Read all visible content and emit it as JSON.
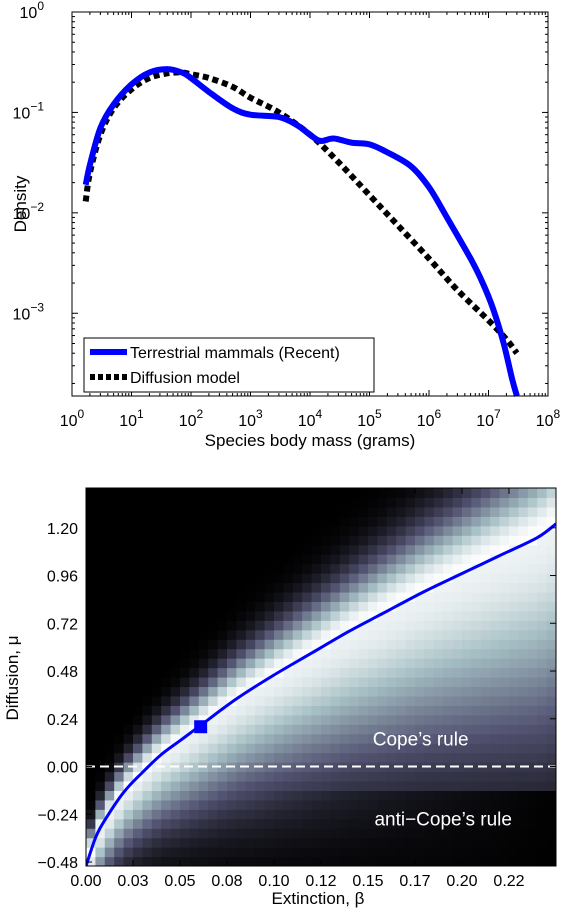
{
  "chart_data": [
    {
      "type": "line",
      "xlabel": "Species body mass (grams)",
      "ylabel": "Density",
      "xscale": "log",
      "yscale": "log",
      "xlim": [
        1,
        100000000
      ],
      "ylim": [
        0.00015,
        1
      ],
      "x_ticks": [
        {
          "value": 1,
          "base": "10",
          "exp": "0"
        },
        {
          "value": 10,
          "base": "10",
          "exp": "1"
        },
        {
          "value": 100,
          "base": "10",
          "exp": "2"
        },
        {
          "value": 1000,
          "base": "10",
          "exp": "3"
        },
        {
          "value": 10000,
          "base": "10",
          "exp": "4"
        },
        {
          "value": 100000,
          "base": "10",
          "exp": "5"
        },
        {
          "value": 1000000,
          "base": "10",
          "exp": "6"
        },
        {
          "value": 10000000,
          "base": "10",
          "exp": "7"
        },
        {
          "value": 100000000,
          "base": "10",
          "exp": "8"
        }
      ],
      "y_ticks": [
        {
          "value": 0.001,
          "base": "10",
          "exp": "−3"
        },
        {
          "value": 0.01,
          "base": "10",
          "exp": "−2"
        },
        {
          "value": 0.1,
          "base": "10",
          "exp": "−1"
        },
        {
          "value": 1,
          "base": "10",
          "exp": "0"
        }
      ],
      "legend_position": "bottom-left",
      "series": [
        {
          "name": "Terrestrial mammals (Recent)",
          "color": "#0000ff",
          "style": "solid",
          "x": [
            1.7,
            2,
            3,
            5,
            10,
            20,
            40,
            70,
            100,
            200,
            500,
            1000,
            3000,
            6000,
            10000,
            15000,
            25000,
            50000,
            100000,
            200000,
            500000,
            1000000,
            2000000,
            5000000,
            8000000,
            12000000,
            18000000,
            25000000,
            30000000
          ],
          "y": [
            0.019,
            0.03,
            0.07,
            0.12,
            0.19,
            0.25,
            0.27,
            0.25,
            0.22,
            0.16,
            0.11,
            0.095,
            0.09,
            0.075,
            0.06,
            0.052,
            0.055,
            0.05,
            0.048,
            0.04,
            0.029,
            0.018,
            0.009,
            0.0035,
            0.002,
            0.0011,
            0.0005,
            0.00022,
            0.00015
          ]
        },
        {
          "name": "Diffusion model",
          "color": "#000000",
          "style": "dotted",
          "x": [
            1.7,
            2,
            3,
            5,
            10,
            20,
            40,
            70,
            100,
            200,
            500,
            1000,
            3000,
            10000,
            30000,
            100000,
            300000,
            1000000,
            3000000,
            10000000,
            20000000,
            30000000
          ],
          "y": [
            0.013,
            0.025,
            0.06,
            0.11,
            0.17,
            0.22,
            0.245,
            0.25,
            0.24,
            0.22,
            0.18,
            0.14,
            0.1,
            0.06,
            0.032,
            0.015,
            0.0075,
            0.0035,
            0.0017,
            0.00085,
            0.00055,
            0.0004
          ]
        }
      ]
    },
    {
      "type": "heatmap",
      "xlabel": "Extinction, β",
      "ylabel": "Diffusion, μ",
      "xlim": [
        0,
        0.25
      ],
      "ylim": [
        -0.5,
        1.4
      ],
      "x_ticks": [
        "0.00",
        "0.03",
        "0.05",
        "0.08",
        "0.10",
        "0.12",
        "0.15",
        "0.17",
        "0.20",
        "0.22"
      ],
      "x_tick_values": [
        0,
        0.025,
        0.05,
        0.075,
        0.1,
        0.125,
        0.15,
        0.175,
        0.2,
        0.225
      ],
      "y_ticks": [
        "1.20",
        "0.96",
        "0.72",
        "0.48",
        "0.24",
        "0.00",
        "−0.24",
        "−0.48"
      ],
      "y_tick_values": [
        1.2,
        0.96,
        0.72,
        0.48,
        0.24,
        0,
        -0.24,
        -0.48
      ],
      "colormap": "bone",
      "curve": {
        "color": "#0000ff",
        "beta": [
          0,
          0.005,
          0.01,
          0.02,
          0.03,
          0.04,
          0.05,
          0.06,
          0.08,
          0.1,
          0.12,
          0.14,
          0.16,
          0.18,
          0.2,
          0.22,
          0.24,
          0.25
        ],
        "mu": [
          -0.5,
          -0.36,
          -0.27,
          -0.13,
          -0.03,
          0.06,
          0.13,
          0.2,
          0.34,
          0.46,
          0.57,
          0.68,
          0.78,
          0.88,
          0.97,
          1.06,
          1.15,
          1.22
        ]
      },
      "marker": {
        "beta": 0.061,
        "mu": 0.2,
        "color": "#0000ff"
      },
      "zero_line": {
        "mu": 0,
        "color": "#ffffff",
        "style": "dashed"
      },
      "annotations": [
        {
          "text": "Cope’s rule",
          "beta": 0.178,
          "mu": 0.14
        },
        {
          "text": "anti−Cope’s rule",
          "beta": 0.19,
          "mu": -0.26
        }
      ]
    }
  ]
}
